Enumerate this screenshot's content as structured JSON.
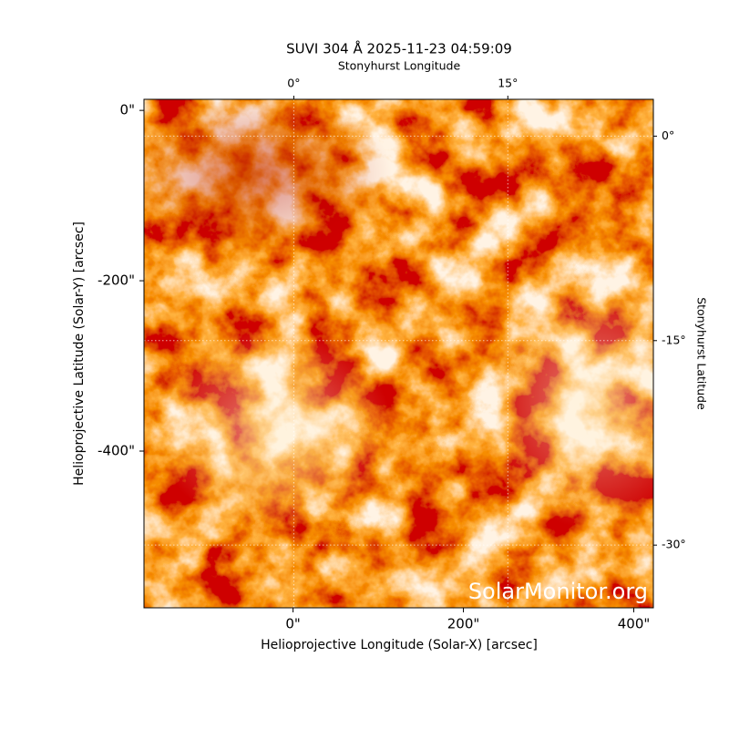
{
  "chart_data": {
    "type": "image",
    "title": "SUVI 304 Å 2025-11-23 04:59:09",
    "xlabel": "Helioprojective Longitude (Solar-X) [arcsec]",
    "ylabel": "Helioprojective Latitude (Solar-Y) [arcsec]",
    "x2label": "Stonyhurst Longitude",
    "y2label": "Stonyhurst Latitude",
    "watermark": "SolarMonitor.org",
    "xlim": [
      -175,
      423
    ],
    "ylim": [
      -584,
      13
    ],
    "xticks": [
      {
        "value": 0,
        "label": "0\""
      },
      {
        "value": 200,
        "label": "200\""
      },
      {
        "value": 400,
        "label": "400\""
      }
    ],
    "yticks": [
      {
        "value": 0,
        "label": "0\""
      },
      {
        "value": -200,
        "label": "-200\""
      },
      {
        "value": -400,
        "label": "-400\""
      }
    ],
    "x2lim": [
      -10.5,
      25.2
    ],
    "x2ticks": [
      {
        "value": 0,
        "label": "0°"
      },
      {
        "value": 15,
        "label": "15°"
      }
    ],
    "y2lim": [
      -34.6,
      2.7
    ],
    "y2ticks": [
      {
        "value": 0,
        "label": "0°"
      },
      {
        "value": -15,
        "label": "-15°"
      },
      {
        "value": -30,
        "label": "-30°"
      }
    ],
    "grid": true
  }
}
